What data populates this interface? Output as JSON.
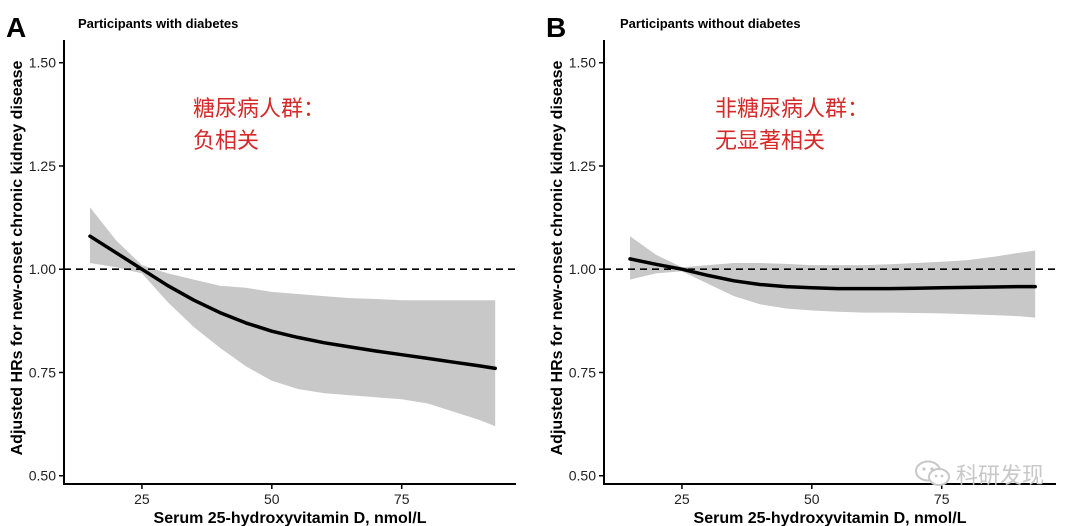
{
  "panels": [
    {
      "letter": "A",
      "title": "Participants with diabetes",
      "annotation_line1": "糖尿病人群：",
      "annotation_line2": "负相关"
    },
    {
      "letter": "B",
      "title": "Participants without diabetes",
      "annotation_line1": "非糖尿病人群：",
      "annotation_line2": "无显著相关"
    }
  ],
  "watermark": {
    "text": "科研发现",
    "icon": "wechat-icon"
  },
  "colors": {
    "line": "#000000",
    "ci_band": "#c8c8c8",
    "annotation": "#d62a2a"
  },
  "chart_data": [
    {
      "type": "line",
      "title": "Participants with diabetes",
      "xlabel": "Serum 25-hydroxyvitamin D, nmol/L",
      "ylabel": "Adjusted HRs for new-onset chronic kidney disease",
      "xlim": [
        10,
        97
      ],
      "ylim": [
        0.48,
        1.555
      ],
      "xticks": [
        25,
        50,
        75
      ],
      "yticks": [
        0.5,
        0.75,
        1.0,
        1.25,
        1.5
      ],
      "xtick_labels": [
        "25",
        "50",
        "75"
      ],
      "ytick_labels": [
        "0.50",
        "0.75",
        "1.00",
        "1.25",
        "1.50"
      ],
      "reference_line": 1.0,
      "grid": false,
      "series": [
        {
          "x": [
            15,
            20,
            25,
            30,
            35,
            40,
            45,
            50,
            55,
            60,
            65,
            70,
            75,
            80,
            85,
            90,
            93
          ],
          "y": [
            1.08,
            1.04,
            1.0,
            0.96,
            0.925,
            0.895,
            0.87,
            0.85,
            0.835,
            0.822,
            0.812,
            0.802,
            0.793,
            0.784,
            0.775,
            0.766,
            0.76
          ],
          "lower": [
            1.015,
            1.005,
            0.99,
            0.92,
            0.86,
            0.81,
            0.765,
            0.73,
            0.71,
            0.7,
            0.695,
            0.69,
            0.685,
            0.675,
            0.655,
            0.635,
            0.62
          ],
          "upper": [
            1.15,
            1.07,
            1.01,
            0.99,
            0.975,
            0.96,
            0.955,
            0.945,
            0.94,
            0.935,
            0.93,
            0.928,
            0.925,
            0.925,
            0.925,
            0.925,
            0.925
          ]
        }
      ]
    },
    {
      "type": "line",
      "title": "Participants without diabetes",
      "xlabel": "Serum 25-hydroxyvitamin D, nmol/L",
      "ylabel": "Adjusted HRs for new-onset chronic kidney disease",
      "xlim": [
        10,
        97
      ],
      "ylim": [
        0.48,
        1.555
      ],
      "xticks": [
        25,
        50,
        75
      ],
      "yticks": [
        0.5,
        0.75,
        1.0,
        1.25,
        1.5
      ],
      "xtick_labels": [
        "25",
        "50",
        "75"
      ],
      "ytick_labels": [
        "0.50",
        "0.75",
        "1.00",
        "1.25",
        "1.50"
      ],
      "reference_line": 1.0,
      "grid": false,
      "series": [
        {
          "x": [
            15,
            20,
            25,
            30,
            35,
            40,
            45,
            50,
            55,
            60,
            65,
            70,
            75,
            80,
            85,
            90,
            93
          ],
          "y": [
            1.025,
            1.012,
            1.0,
            0.985,
            0.972,
            0.963,
            0.958,
            0.955,
            0.953,
            0.953,
            0.953,
            0.954,
            0.955,
            0.956,
            0.957,
            0.958,
            0.958
          ],
          "lower": [
            0.975,
            0.99,
            0.995,
            0.965,
            0.935,
            0.915,
            0.905,
            0.9,
            0.897,
            0.895,
            0.895,
            0.894,
            0.893,
            0.891,
            0.889,
            0.886,
            0.883
          ],
          "upper": [
            1.08,
            1.035,
            1.005,
            1.01,
            1.015,
            1.015,
            1.013,
            1.01,
            1.01,
            1.01,
            1.012,
            1.015,
            1.018,
            1.022,
            1.03,
            1.04,
            1.045
          ]
        }
      ]
    }
  ]
}
